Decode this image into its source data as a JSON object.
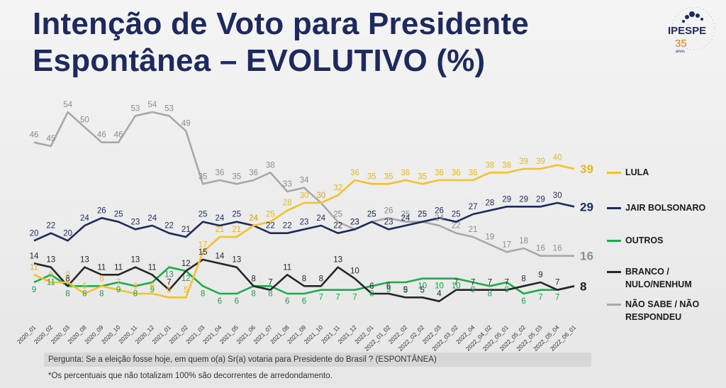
{
  "title": {
    "line1": "Intenção de Voto para Presidente",
    "line2": "Espontânea – EVOLUTIVO (%)"
  },
  "logo": {
    "name": "IPESPE",
    "years": "35",
    "years_label": "anos",
    "color": "#e07b1f"
  },
  "question": "Pergunta:  Se a eleição fosse hoje, em quem o(a) Sr(a) votaria para  Presidente do Brasil ? (ESPONTÂNEA)",
  "footnote": "*Os percentuais que não totalizam 100% são decorrentes de arredondamento.",
  "chart_data": {
    "type": "line",
    "x": [
      "2020_01",
      "2020_02",
      "2020_03",
      "2020_08",
      "2020_09",
      "2020_10",
      "2020_11",
      "2020_12",
      "2021_01",
      "2021_02",
      "2021_03",
      "2021_04",
      "2021_05",
      "2021_06",
      "2021_07",
      "2021_08",
      "2021_09",
      "2021_10",
      "2021_11",
      "2021_12",
      "2022_01",
      "2022_01_02",
      "2022_02",
      "2022_02_02",
      "2022_03",
      "2022_03_02",
      "2022_04",
      "2022_04_02",
      "2022_05_01",
      "2022_05_02",
      "2022_05_03",
      "2022_05_04",
      "2022_06_01"
    ],
    "ylim": [
      0,
      60
    ],
    "legend_position": "right",
    "series": [
      {
        "name": "LULA",
        "color": "#f2c12e",
        "label_color": "#e8b81b",
        "values": [
          11,
          9,
          9,
          6,
          8,
          7,
          6,
          6,
          5,
          5,
          17,
          21,
          21,
          24,
          25,
          28,
          30,
          30,
          32,
          36,
          35,
          35,
          36,
          35,
          36,
          36,
          36,
          38,
          38,
          39,
          39,
          40,
          39
        ]
      },
      {
        "name": "JAIR BOLSONARO",
        "color": "#1f2a5c",
        "label_color": "#1f2a5c",
        "values": [
          20,
          22,
          20,
          24,
          26,
          25,
          23,
          24,
          22,
          21,
          25,
          24,
          25,
          24,
          22,
          22,
          23,
          24,
          22,
          23,
          25,
          23,
          24,
          25,
          26,
          25,
          27,
          28,
          29,
          29,
          29,
          30,
          29
        ]
      },
      {
        "name": "OUTROS",
        "color": "#1faa4e",
        "label_color": "#1aa14a",
        "values": [
          9,
          11,
          8,
          8,
          8,
          9,
          8,
          9,
          13,
          12,
          8,
          6,
          6,
          8,
          8,
          6,
          6,
          7,
          7,
          7,
          8,
          9,
          9,
          10,
          10,
          10,
          9,
          8,
          9,
          6,
          7,
          7,
          8
        ]
      },
      {
        "name": "BRANCO / NULO/NENHUM",
        "color": "#262626",
        "label_color": "#262626",
        "values": [
          14,
          13,
          8,
          13,
          11,
          11,
          13,
          11,
          7,
          12,
          15,
          14,
          13,
          8,
          7,
          11,
          8,
          8,
          13,
          10,
          6,
          6,
          5,
          5,
          4,
          7,
          7,
          7,
          7,
          8,
          9,
          7,
          8
        ]
      },
      {
        "name": "NÃO SABE / NÃO RESPONDEU",
        "color": "#a8a8a8",
        "label_color": "#8c8c8c",
        "values": [
          46,
          45,
          54,
          50,
          46,
          46,
          53,
          54,
          53,
          49,
          35,
          36,
          35,
          36,
          38,
          33,
          34,
          30,
          25,
          23,
          25,
          26,
          25,
          25,
          24,
          22,
          21,
          19,
          17,
          18,
          16,
          16,
          16
        ]
      }
    ]
  }
}
